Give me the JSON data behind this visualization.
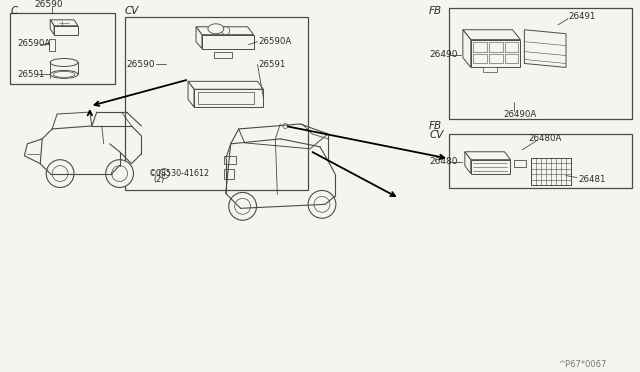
{
  "bg_color": "#f5f5f0",
  "line_color": "#4a4a4a",
  "text_color": "#2a2a2a",
  "part_number_label": "^P67*0067",
  "labels": {
    "C_tag": "C",
    "CV_tag": "CV",
    "FB_tag1": "FB",
    "FB_tag2": "FB",
    "CV_tag2": "CV",
    "p26590": "26590",
    "p26590A": "26590A",
    "p26591": "26591",
    "p26590_cv": "26590",
    "p26590A_cv": "26590A",
    "p26591_cv": "26591",
    "p_screw": "©08530-41612",
    "p_screw2": "(2)",
    "p26490": "26490",
    "p26491": "26491",
    "p26490A": "26490A",
    "p26480": "26480",
    "p26480A": "26480A",
    "p26481": "26481"
  }
}
